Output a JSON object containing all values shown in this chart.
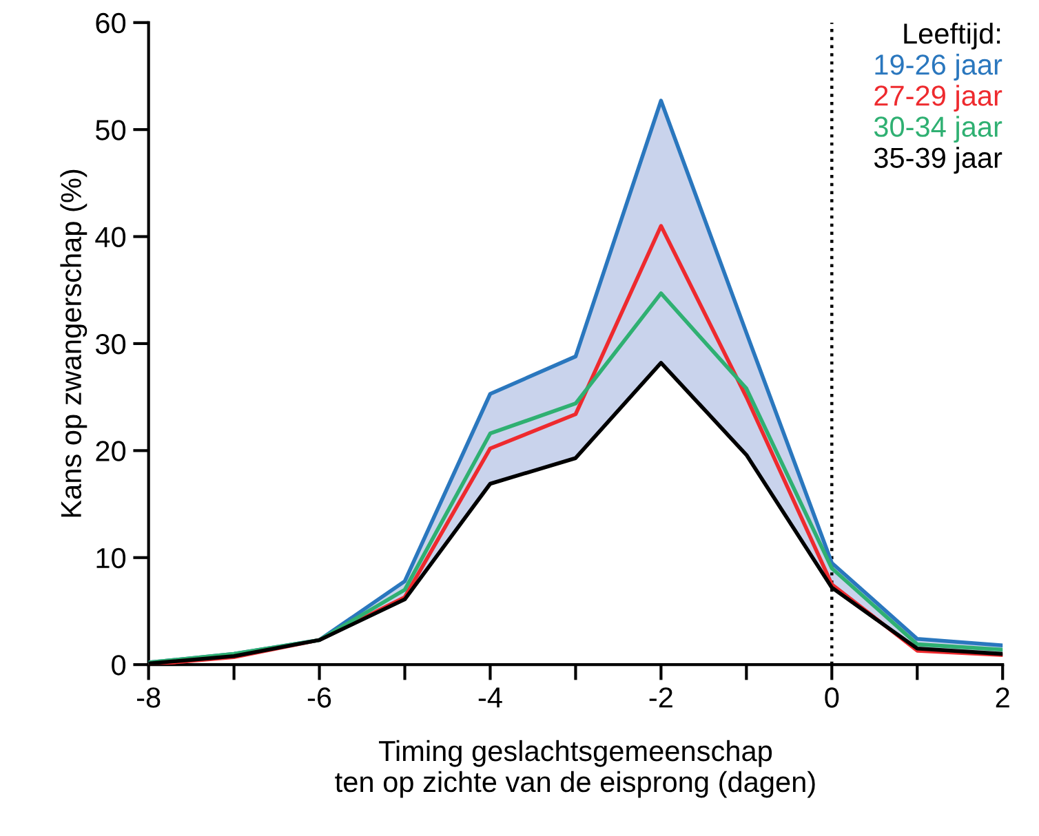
{
  "chart_data": {
    "type": "line",
    "xlabel": "Timing geslachtsgemeenschap\nten op zichte van de eisprong (dagen)",
    "ylabel": "Kans op zwangerschap (%)",
    "legend_title": "Leeftijd:",
    "legend": "top right",
    "grid": false,
    "marker": "none",
    "line_style": "solid",
    "x": [
      -8,
      -7,
      -6,
      -5,
      -4,
      -3,
      -2,
      -1,
      0,
      1,
      2
    ],
    "xlim": [
      -8,
      2
    ],
    "xticks": [
      -8,
      {
        "value": -7,
        "label": null
      },
      -6,
      {
        "value": -5,
        "label": null
      },
      -4,
      {
        "value": -3,
        "label": null
      },
      -2,
      {
        "value": -1,
        "label": null
      },
      0,
      {
        "value": 1,
        "label": null
      },
      2
    ],
    "ylim": [
      0,
      60
    ],
    "yticks": [
      0,
      10,
      20,
      30,
      40,
      50,
      60
    ],
    "ref_lines": [
      {
        "axis": "x",
        "value": 0,
        "color": "#000000",
        "line_style": "dotted"
      }
    ],
    "series": [
      {
        "name": "19-26 jaar",
        "color": "#2a77be",
        "values": [
          0.2,
          1.0,
          2.3,
          7.8,
          25.3,
          28.8,
          52.7,
          31.0,
          9.5,
          2.4,
          1.8
        ],
        "lower": [
          0.1,
          0.8,
          2.3,
          6.1,
          16.9,
          19.3,
          28.2,
          19.6,
          7.2,
          1.5,
          1.0
        ],
        "upper": [
          0.2,
          1.0,
          2.3,
          7.8,
          25.3,
          28.8,
          52.7,
          31.0,
          9.5,
          2.4,
          1.8
        ]
      },
      {
        "name": "27-29 jaar",
        "color": "#ee2a2e",
        "values": [
          0.0,
          0.7,
          2.3,
          6.3,
          20.2,
          23.4,
          41.0,
          25.0,
          7.5,
          1.3,
          0.9
        ]
      },
      {
        "name": "30-34 jaar",
        "color": "#2fb072",
        "values": [
          0.2,
          1.0,
          2.3,
          7.0,
          21.6,
          24.4,
          34.7,
          25.8,
          9.0,
          1.9,
          1.4
        ]
      },
      {
        "name": "35-39 jaar",
        "color": "#000000",
        "values": [
          0.1,
          0.8,
          2.3,
          6.1,
          16.9,
          19.3,
          28.2,
          19.6,
          7.2,
          1.5,
          1.0
        ]
      }
    ]
  }
}
